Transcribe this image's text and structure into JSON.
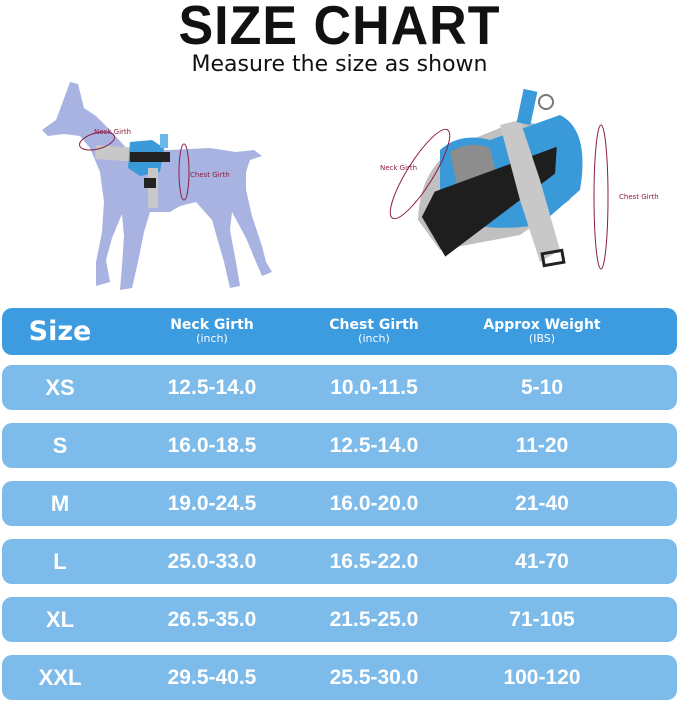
{
  "title": "SIZE CHART",
  "subtitle": "Measure the size as shown",
  "illustration": {
    "dog_neck_label": "Neck Girth",
    "dog_chest_label": "Chest Girth",
    "harness_neck_label": "Neck Girth",
    "harness_chest_label": "Chest Girth"
  },
  "colors": {
    "header": "#3d9be0",
    "row": "#7dbbea",
    "dog": "#a9b3e2",
    "measure": "#8b1e3f"
  },
  "table": {
    "headers": [
      {
        "label": "Size",
        "unit": ""
      },
      {
        "label": "Neck Girth",
        "unit": "(inch)"
      },
      {
        "label": "Chest Girth",
        "unit": "(inch)"
      },
      {
        "label": "Approx Weight",
        "unit": "(IBS)"
      }
    ],
    "rows": [
      [
        "XS",
        "12.5-14.0",
        "10.0-11.5",
        "5-10"
      ],
      [
        "S",
        "16.0-18.5",
        "12.5-14.0",
        "11-20"
      ],
      [
        "M",
        "19.0-24.5",
        "16.0-20.0",
        "21-40"
      ],
      [
        "L",
        "25.0-33.0",
        "16.5-22.0",
        "41-70"
      ],
      [
        "XL",
        "26.5-35.0",
        "21.5-25.0",
        "71-105"
      ],
      [
        "XXL",
        "29.5-40.5",
        "25.5-30.0",
        "100-120"
      ]
    ]
  }
}
